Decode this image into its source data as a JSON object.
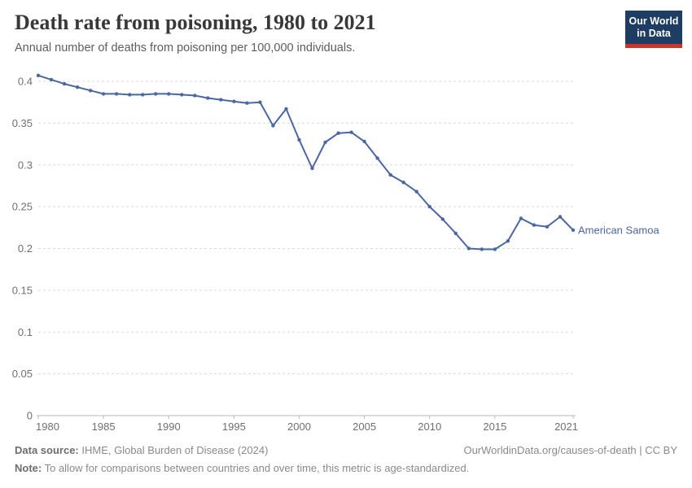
{
  "header": {
    "title": "Death rate from poisoning, 1980 to 2021",
    "subtitle": "Annual number of deaths from poisoning per 100,000 individuals.",
    "logo_line1": "Our World",
    "logo_line2": "in Data"
  },
  "colors": {
    "series_blue": "#4b67a1",
    "logo_navy": "#1d3d63",
    "logo_red": "#cd322b",
    "gridline": "#dadada",
    "axis": "#b8b8b8",
    "tick_text": "#707070"
  },
  "chart_data": {
    "type": "line",
    "title": "Death rate from poisoning, 1980 to 2021",
    "xlabel": "",
    "ylabel": "",
    "grid": "horizontal-dashed",
    "legend_position": "end-of-line-label",
    "ylim": [
      0,
      0.42
    ],
    "x": [
      1980,
      1981,
      1982,
      1983,
      1984,
      1985,
      1986,
      1987,
      1988,
      1989,
      1990,
      1991,
      1992,
      1993,
      1994,
      1995,
      1996,
      1997,
      1998,
      1999,
      2000,
      2001,
      2002,
      2003,
      2004,
      2005,
      2006,
      2007,
      2008,
      2009,
      2010,
      2011,
      2012,
      2013,
      2014,
      2015,
      2016,
      2017,
      2018,
      2019,
      2020,
      2021
    ],
    "x_ticks": [
      1980,
      1985,
      1990,
      1995,
      2000,
      2005,
      2010,
      2015,
      2021
    ],
    "y_ticks": [
      0,
      0.05,
      0.1,
      0.15,
      0.2,
      0.25,
      0.3,
      0.35,
      0.4
    ],
    "y_tick_labels": [
      "0",
      "0.05",
      "0.1",
      "0.15",
      "0.2",
      "0.25",
      "0.3",
      "0.35",
      "0.4"
    ],
    "series": [
      {
        "name": "American Samoa",
        "color": "#4b67a1",
        "values": [
          0.407,
          0.402,
          0.397,
          0.393,
          0.389,
          0.385,
          0.385,
          0.384,
          0.384,
          0.385,
          0.385,
          0.384,
          0.383,
          0.38,
          0.378,
          0.376,
          0.374,
          0.375,
          0.347,
          0.367,
          0.33,
          0.296,
          0.327,
          0.338,
          0.339,
          0.328,
          0.308,
          0.288,
          0.279,
          0.268,
          0.25,
          0.235,
          0.218,
          0.2,
          0.199,
          0.199,
          0.209,
          0.236,
          0.228,
          0.226,
          0.238,
          0.222
        ]
      }
    ]
  },
  "footer": {
    "datasource_label": "Data source:",
    "datasource_value": " IHME, Global Burden of Disease (2024)",
    "link_text": "OurWorldinData.org/causes-of-death | CC BY",
    "note_label": "Note:",
    "note_value": " To allow for comparisons between countries and over time, this metric is age-standardized."
  }
}
